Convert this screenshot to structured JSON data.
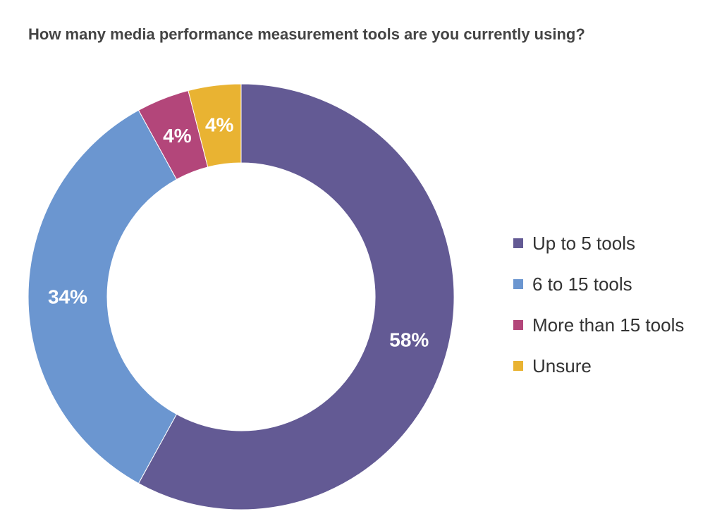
{
  "chart_data": {
    "type": "pie",
    "title": "How many media performance measurement tools are you currently using?",
    "donut": true,
    "start_angle_deg": 0,
    "direction": "clockwise",
    "legend_position": "right",
    "categories": [
      "Up to 5 tools",
      "6 to 15 tools",
      "More than 15 tools",
      "Unsure"
    ],
    "values": [
      58,
      34,
      4,
      4
    ],
    "value_labels": [
      "58%",
      "34%",
      "4%",
      "4%"
    ],
    "colors": [
      "#635a94",
      "#6b96d0",
      "#b3467a",
      "#e9b332"
    ]
  }
}
